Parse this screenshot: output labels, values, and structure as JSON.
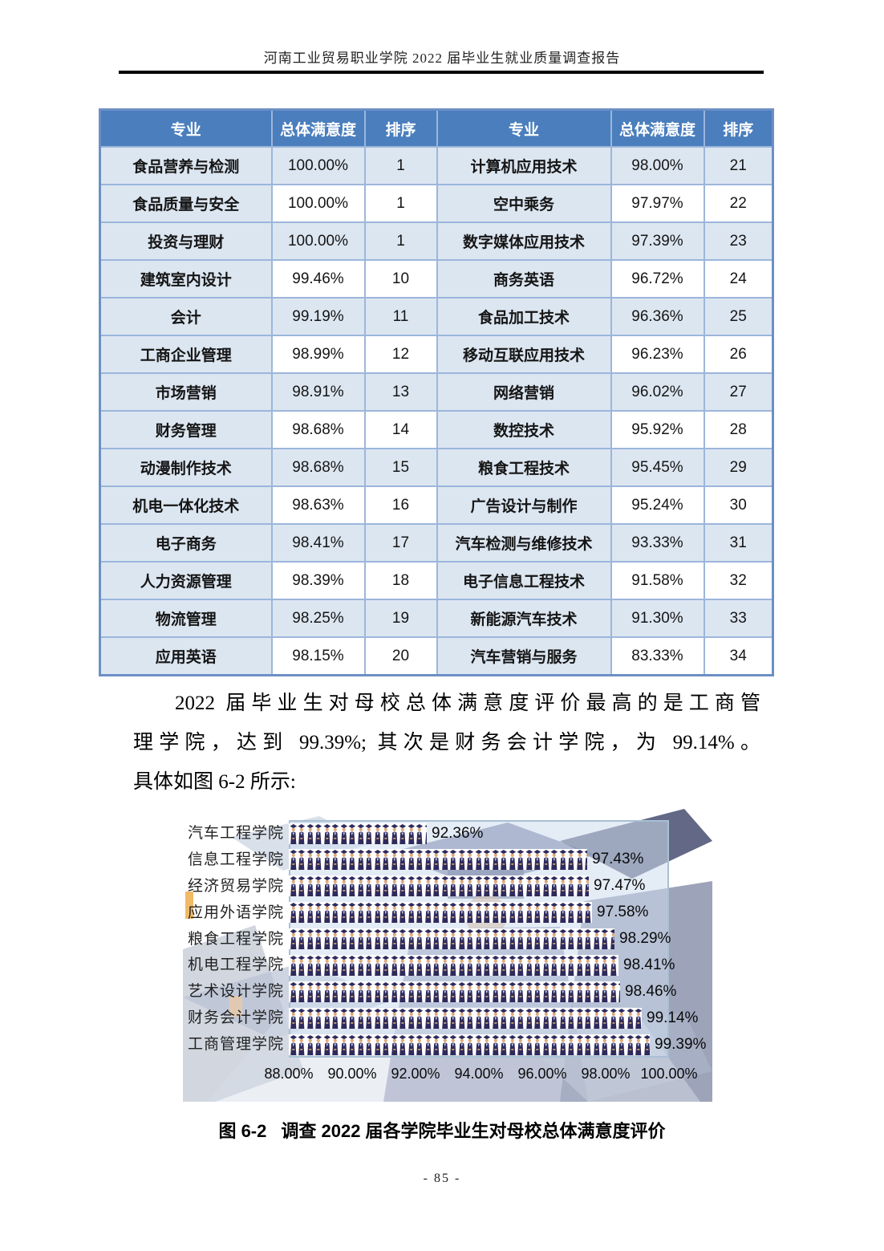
{
  "page": {
    "header_title": "河南工业贸易职业学院 2022 届毕业生就业质量调查报告",
    "page_number": "- 85 -"
  },
  "table": {
    "headers": [
      "专业",
      "总体满意度",
      "排序",
      "专业",
      "总体满意度",
      "排序"
    ],
    "rows": [
      [
        "食品营养与检测",
        "100.00%",
        "1",
        "计算机应用技术",
        "98.00%",
        "21"
      ],
      [
        "食品质量与安全",
        "100.00%",
        "1",
        "空中乘务",
        "97.97%",
        "22"
      ],
      [
        "投资与理财",
        "100.00%",
        "1",
        "数字媒体应用技术",
        "97.39%",
        "23"
      ],
      [
        "建筑室内设计",
        "99.46%",
        "10",
        "商务英语",
        "96.72%",
        "24"
      ],
      [
        "会计",
        "99.19%",
        "11",
        "食品加工技术",
        "96.36%",
        "25"
      ],
      [
        "工商企业管理",
        "98.99%",
        "12",
        "移动互联应用技术",
        "96.23%",
        "26"
      ],
      [
        "市场营销",
        "98.91%",
        "13",
        "网络营销",
        "96.02%",
        "27"
      ],
      [
        "财务管理",
        "98.68%",
        "14",
        "数控技术",
        "95.92%",
        "28"
      ],
      [
        "动漫制作技术",
        "98.68%",
        "15",
        "粮食工程技术",
        "95.45%",
        "29"
      ],
      [
        "机电一体化技术",
        "98.63%",
        "16",
        "广告设计与制作",
        "95.24%",
        "30"
      ],
      [
        "电子商务",
        "98.41%",
        "17",
        "汽车检测与维修技术",
        "93.33%",
        "31"
      ],
      [
        "人力资源管理",
        "98.39%",
        "18",
        "电子信息工程技术",
        "91.58%",
        "32"
      ],
      [
        "物流管理",
        "98.25%",
        "19",
        "新能源汽车技术",
        "91.30%",
        "33"
      ],
      [
        "应用英语",
        "98.15%",
        "20",
        "汽车营销与服务",
        "83.33%",
        "34"
      ]
    ],
    "colors": {
      "header_bg": "#4a7ebd",
      "header_text": "#ffffff",
      "row_bg": "#dce6f1",
      "alt_bg": "#ffffff",
      "border": "#9cb6db",
      "outer_border": "#6d8fc5"
    }
  },
  "paragraph": {
    "lines": [
      "2022 届毕业生对母校总体满意度评价最高的是工商管",
      "理学院，达到 99.39%; 其次是财务会计学院，为 99.14%。",
      "具体如图 6-2 所示:"
    ]
  },
  "chart_data": {
    "type": "bar",
    "orientation": "horizontal",
    "title": "",
    "categories": [
      "汽车工程学院",
      "信息工程学院",
      "经济贸易学院",
      "应用外语学院",
      "粮食工程学院",
      "机电工程学院",
      "艺术设计学院",
      "财务会计学院",
      "工商管理学院"
    ],
    "values": [
      92.36,
      97.43,
      97.47,
      97.58,
      98.29,
      98.41,
      98.46,
      99.14,
      99.39
    ],
    "labels": [
      "92.36%",
      "97.43%",
      "97.47%",
      "97.58%",
      "98.29%",
      "98.41%",
      "98.46%",
      "99.14%",
      "99.39%"
    ],
    "xlim": [
      88,
      100
    ],
    "x_ticks": [
      "88.00%",
      "90.00%",
      "92.00%",
      "94.00%",
      "96.00%",
      "98.00%",
      "100.00%"
    ],
    "grid": false,
    "legend": false,
    "bar_style": "pictogram-graduates",
    "colors": {
      "icon": "#2e2a5c",
      "icon_face": "#dfa877",
      "icon_collar": "#cdd3ee",
      "bar_bg": "#ffffff",
      "plot_fill": "#cfdded",
      "plot_border": "#a9c0d4"
    }
  },
  "figure": {
    "caption_label": "图 6-2",
    "caption_text": "调查 2022 届各学院毕业生对母校总体满意度评价"
  }
}
